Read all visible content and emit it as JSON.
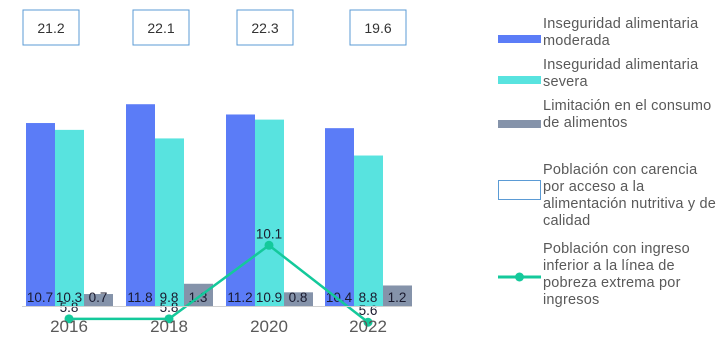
{
  "chart_data": {
    "type": "bar",
    "categories": [
      "2016",
      "2018",
      "2020",
      "2022"
    ],
    "ylim": [
      0,
      22
    ],
    "grid": false,
    "legend_position": "right",
    "series": [
      {
        "name": "Inseguridad alimentaria moderada",
        "kind": "bar",
        "color": "#5b7cf7",
        "values": [
          10.7,
          11.8,
          11.2,
          10.4
        ]
      },
      {
        "name": "Inseguridad alimentaria severa",
        "kind": "bar",
        "color": "#58e3df",
        "values": [
          10.3,
          9.8,
          10.9,
          8.8
        ]
      },
      {
        "name": "Limitación en el consumo de alimentos",
        "kind": "bar",
        "color": "#8593aa",
        "values": [
          0.7,
          1.3,
          0.8,
          1.2
        ]
      },
      {
        "name": "Población con carencia por acceso a la alimentación nutritiva y de calidad",
        "kind": "box",
        "values": [
          21.2,
          22.1,
          22.3,
          19.6
        ]
      },
      {
        "name": "Población con ingreso inferior a la línea de pobreza extrema por ingresos",
        "kind": "line",
        "color": "#14c99b",
        "values": [
          5.8,
          5.8,
          10.1,
          5.6
        ]
      }
    ],
    "value_labels": {
      "moderada": [
        "10.7",
        "11.8",
        "11.2",
        "10.4"
      ],
      "severa": [
        "10.3",
        "9.8",
        "10.9",
        "8.8"
      ],
      "limitacion": [
        "0.7",
        "1.3",
        "0.8",
        "1.2"
      ],
      "carencia": [
        "21.2",
        "22.1",
        "22.3",
        "19.6"
      ],
      "pobreza": [
        "5.8",
        "5.8",
        "10.1",
        "5.6"
      ]
    }
  },
  "legend": [
    {
      "label": "Inseguridad alimentaria moderada",
      "swatch": "bar",
      "color": "#5b7cf7"
    },
    {
      "label": "Inseguridad alimentaria severa",
      "swatch": "bar",
      "color": "#58e3df"
    },
    {
      "label": "Limitación en el consumo de alimentos",
      "swatch": "bar",
      "color": "#8593aa"
    },
    {
      "label": "Población con carencia por acceso a la alimentación nutritiva y de calidad",
      "swatch": "box",
      "color": "#5b9bd5"
    },
    {
      "label": "Población con ingreso inferior a la línea de pobreza extrema por ingresos",
      "swatch": "line",
      "color": "#14c99b"
    }
  ]
}
